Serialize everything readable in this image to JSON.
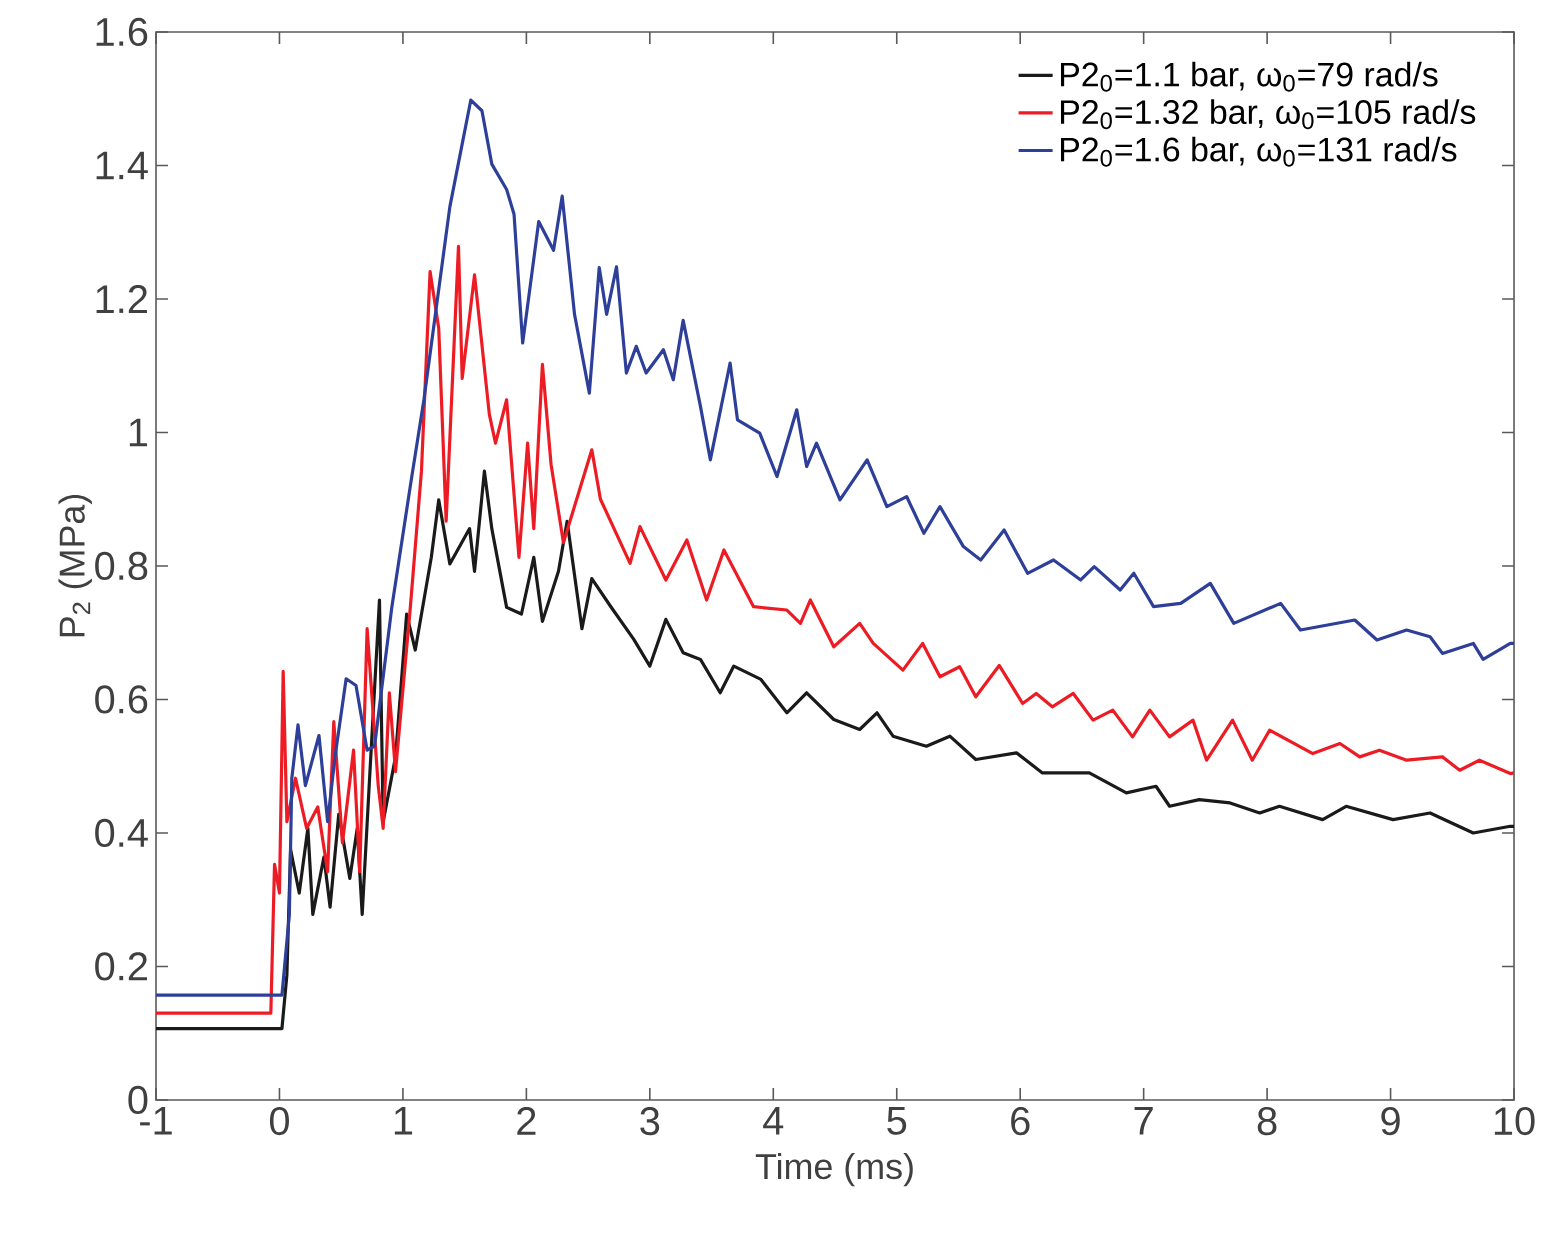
{
  "chart_data": {
    "type": "line",
    "xlabel": "Time (ms)",
    "ylabel": "P$_{2}$ (MPa)",
    "xlim": [
      -1,
      10
    ],
    "ylim": [
      0,
      1.6
    ],
    "xticks": [
      -1,
      0,
      1,
      2,
      3,
      4,
      5,
      6,
      7,
      8,
      9,
      10
    ],
    "yticks": [
      0,
      0.2,
      0.4,
      0.6,
      0.8,
      1,
      1.2,
      1.4,
      1.6
    ],
    "legend": "top right",
    "line_style": "solid",
    "series": [
      {
        "name": "P2$_{0}$=1.1 bar, ω$_{0}$=79 rad/s",
        "color": "#1a1a1a",
        "x": [
          -1,
          0.02,
          0.06,
          0.09,
          0.16,
          0.23,
          0.27,
          0.36,
          0.41,
          0.48,
          0.57,
          0.63,
          0.67,
          0.73,
          0.81,
          0.84,
          0.94,
          1.03,
          1.1,
          1.23,
          1.29,
          1.38,
          1.54,
          1.58,
          1.66,
          1.72,
          1.84,
          1.96,
          2.06,
          2.13,
          2.26,
          2.33,
          2.45,
          2.53,
          2.68,
          2.87,
          3.0,
          3.13,
          3.27,
          3.41,
          3.57,
          3.68,
          3.9,
          4.11,
          4.27,
          4.49,
          4.7,
          4.84,
          4.97,
          5.24,
          5.43,
          5.64,
          5.97,
          6.18,
          6.56,
          6.86,
          7.1,
          7.21,
          7.45,
          7.7,
          7.94,
          8.1,
          8.45,
          8.64,
          9.02,
          9.32,
          9.67,
          9.97,
          10
        ],
        "values": [
          0.107,
          0.107,
          0.187,
          0.375,
          0.31,
          0.407,
          0.278,
          0.364,
          0.289,
          0.428,
          0.332,
          0.407,
          0.278,
          0.482,
          0.749,
          0.417,
          0.514,
          0.728,
          0.674,
          0.813,
          0.899,
          0.803,
          0.856,
          0.792,
          0.942,
          0.856,
          0.738,
          0.728,
          0.813,
          0.717,
          0.792,
          0.867,
          0.706,
          0.781,
          0.74,
          0.69,
          0.65,
          0.72,
          0.67,
          0.66,
          0.61,
          0.65,
          0.63,
          0.58,
          0.61,
          0.57,
          0.555,
          0.58,
          0.545,
          0.53,
          0.545,
          0.51,
          0.52,
          0.49,
          0.49,
          0.46,
          0.47,
          0.44,
          0.45,
          0.445,
          0.43,
          0.44,
          0.42,
          0.44,
          0.42,
          0.43,
          0.4,
          0.41,
          0.41
        ]
      },
      {
        "name": "P2$_{0}$=1.32 bar, ω$_{0}$=105 rad/s",
        "color": "#ed1c24",
        "x": [
          -1,
          -0.07,
          -0.04,
          0,
          0.03,
          0.06,
          0.13,
          0.22,
          0.31,
          0.39,
          0.44,
          0.51,
          0.6,
          0.65,
          0.71,
          0.8,
          0.84,
          0.89,
          0.94,
          1.06,
          1.15,
          1.22,
          1.29,
          1.35,
          1.45,
          1.48,
          1.58,
          1.7,
          1.75,
          1.84,
          1.94,
          2.01,
          2.06,
          2.13,
          2.2,
          2.3,
          2.53,
          2.6,
          2.84,
          2.92,
          3.13,
          3.3,
          3.46,
          3.6,
          3.84,
          4.11,
          4.22,
          4.3,
          4.49,
          4.7,
          4.81,
          5.05,
          5.21,
          5.35,
          5.51,
          5.64,
          5.83,
          6.02,
          6.13,
          6.26,
          6.43,
          6.59,
          6.75,
          6.91,
          7.05,
          7.21,
          7.4,
          7.51,
          7.72,
          7.88,
          8.02,
          8.37,
          8.59,
          8.75,
          8.91,
          9.13,
          9.42,
          9.56,
          9.72,
          9.97,
          10
        ],
        "values": [
          0.13,
          0.13,
          0.353,
          0.31,
          0.642,
          0.417,
          0.482,
          0.407,
          0.439,
          0.342,
          0.567,
          0.385,
          0.524,
          0.342,
          0.706,
          0.471,
          0.407,
          0.61,
          0.492,
          0.738,
          0.942,
          1.241,
          1.156,
          0.867,
          1.279,
          1.081,
          1.236,
          1.027,
          0.984,
          1.049,
          0.813,
          0.984,
          0.856,
          1.102,
          0.952,
          0.835,
          0.974,
          0.9,
          0.804,
          0.859,
          0.779,
          0.839,
          0.749,
          0.824,
          0.739,
          0.734,
          0.714,
          0.749,
          0.679,
          0.714,
          0.684,
          0.644,
          0.684,
          0.634,
          0.649,
          0.604,
          0.651,
          0.594,
          0.609,
          0.589,
          0.609,
          0.569,
          0.584,
          0.544,
          0.584,
          0.544,
          0.569,
          0.509,
          0.569,
          0.509,
          0.554,
          0.519,
          0.534,
          0.514,
          0.524,
          0.509,
          0.514,
          0.494,
          0.509,
          0.489,
          0.49
        ]
      },
      {
        "name": "P2$_{0}$=1.6 bar, ω$_{0}$=131 rad/s",
        "color": "#2e3f99",
        "x": [
          -1,
          0.02,
          0.08,
          0.1,
          0.15,
          0.21,
          0.32,
          0.39,
          0.45,
          0.54,
          0.62,
          0.71,
          0.77,
          0.91,
          1.06,
          1.17,
          1.38,
          1.55,
          1.64,
          1.72,
          1.84,
          1.9,
          1.97,
          2.1,
          2.22,
          2.29,
          2.39,
          2.51,
          2.59,
          2.65,
          2.73,
          2.81,
          2.89,
          2.97,
          3.11,
          3.19,
          3.27,
          3.41,
          3.49,
          3.65,
          3.71,
          3.89,
          4.03,
          4.19,
          4.27,
          4.35,
          4.54,
          4.76,
          4.92,
          5.08,
          5.22,
          5.35,
          5.54,
          5.68,
          5.87,
          6.06,
          6.27,
          6.49,
          6.6,
          6.81,
          6.92,
          7.08,
          7.3,
          7.54,
          7.73,
          8.11,
          8.27,
          8.71,
          8.89,
          9.13,
          9.32,
          9.42,
          9.67,
          9.75,
          9.97,
          10
        ],
        "values": [
          0.157,
          0.157,
          0.278,
          0.482,
          0.562,
          0.471,
          0.546,
          0.417,
          0.514,
          0.631,
          0.621,
          0.524,
          0.53,
          0.738,
          0.92,
          1.049,
          1.338,
          1.498,
          1.482,
          1.402,
          1.364,
          1.327,
          1.134,
          1.316,
          1.273,
          1.354,
          1.177,
          1.059,
          1.247,
          1.177,
          1.248,
          1.089,
          1.129,
          1.089,
          1.124,
          1.079,
          1.168,
          1.039,
          0.959,
          1.104,
          1.019,
          0.999,
          0.934,
          1.034,
          0.949,
          0.984,
          0.899,
          0.959,
          0.889,
          0.904,
          0.849,
          0.889,
          0.829,
          0.809,
          0.854,
          0.789,
          0.809,
          0.779,
          0.799,
          0.764,
          0.789,
          0.739,
          0.744,
          0.774,
          0.714,
          0.744,
          0.704,
          0.719,
          0.689,
          0.704,
          0.694,
          0.669,
          0.684,
          0.66,
          0.684,
          0.684
        ]
      }
    ]
  }
}
